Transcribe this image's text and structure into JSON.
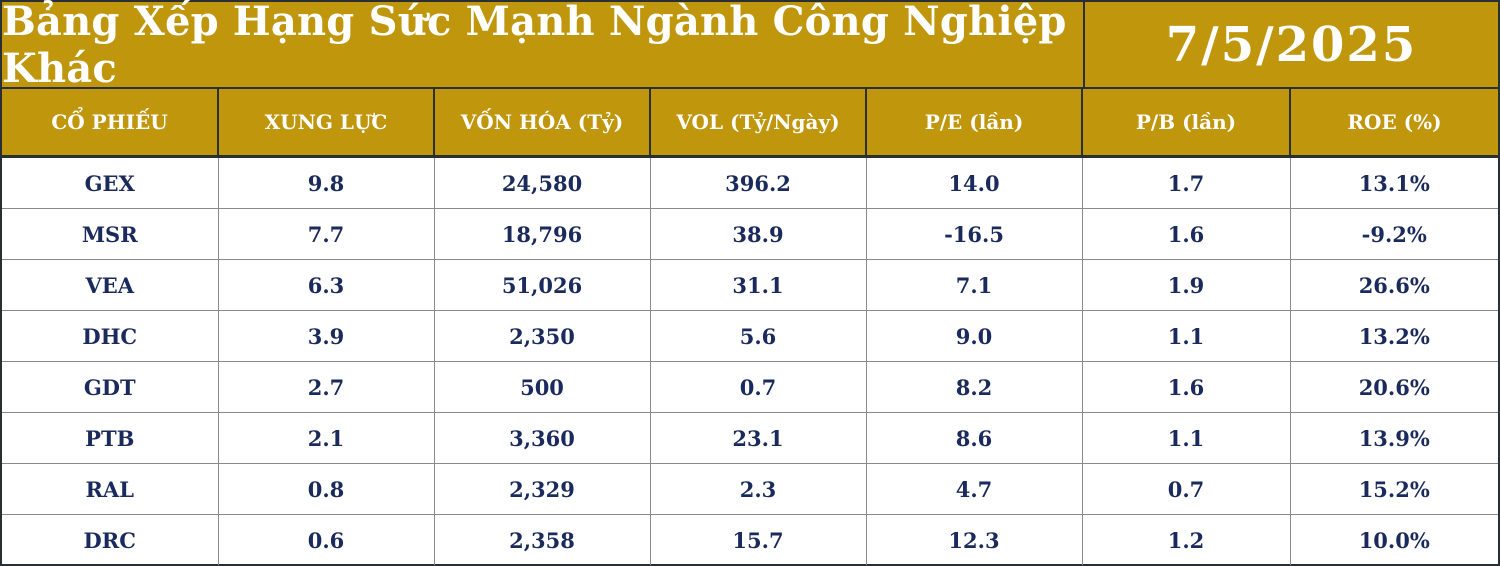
{
  "header": {
    "title": "Bảng Xếp Hạng Sức Mạnh Ngành Công Nghiệp Khác",
    "date": "7/5/2025"
  },
  "table": {
    "columns": [
      "CỔ PHIẾU",
      "XUNG LỰC",
      "VỐN HÓA (Tỷ)",
      "VOL (Tỷ/Ngày)",
      "P/E (lần)",
      "P/B (lần)",
      "ROE (%)"
    ],
    "rows": [
      [
        "GEX",
        "9.8",
        "24,580",
        "396.2",
        "14.0",
        "1.7",
        "13.1%"
      ],
      [
        "MSR",
        "7.7",
        "18,796",
        "38.9",
        "-16.5",
        "1.6",
        "-9.2%"
      ],
      [
        "VEA",
        "6.3",
        "51,026",
        "31.1",
        "7.1",
        "1.9",
        "26.6%"
      ],
      [
        "DHC",
        "3.9",
        "2,350",
        "5.6",
        "9.0",
        "1.1",
        "13.2%"
      ],
      [
        "GDT",
        "2.7",
        "500",
        "0.7",
        "8.2",
        "1.6",
        "20.6%"
      ],
      [
        "PTB",
        "2.1",
        "3,360",
        "23.1",
        "8.6",
        "1.1",
        "13.9%"
      ],
      [
        "RAL",
        "0.8",
        "2,329",
        "2.3",
        "4.7",
        "0.7",
        "15.2%"
      ],
      [
        "DRC",
        "0.6",
        "2,358",
        "15.7",
        "12.3",
        "1.2",
        "10.0%"
      ]
    ]
  },
  "colors": {
    "header_gold": "#c0960d",
    "header_text": "#ffffff",
    "cell_text": "#1b2a5c",
    "border": "#2a2f33"
  }
}
